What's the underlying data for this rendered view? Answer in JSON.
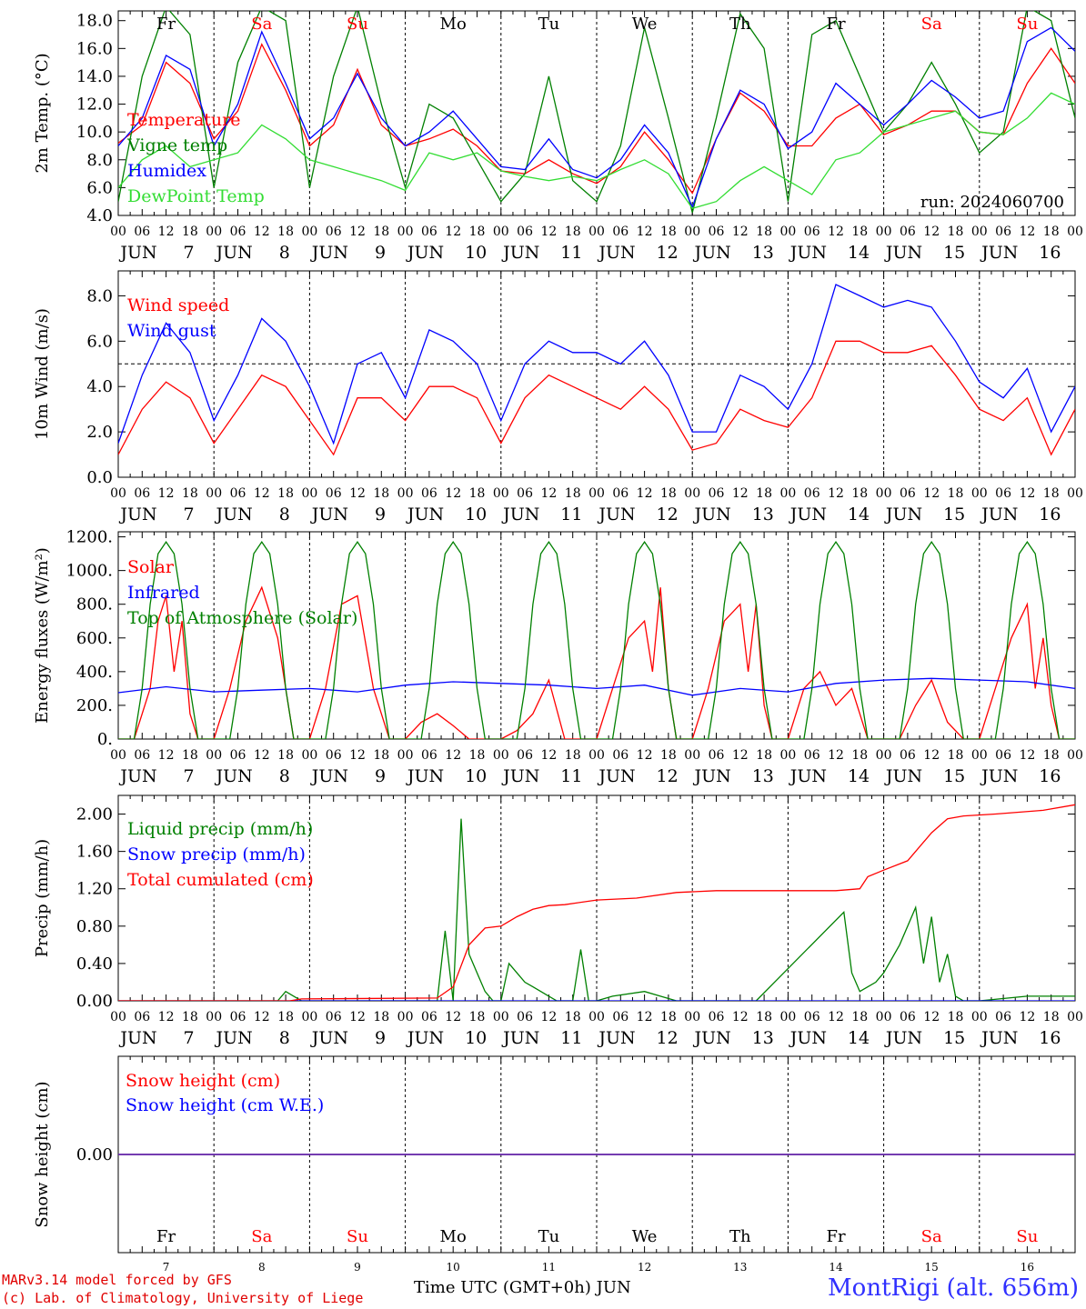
{
  "days": [
    {
      "day": "7",
      "abbr": "Fr",
      "weekend": false
    },
    {
      "day": "8",
      "abbr": "Sa",
      "weekend": true
    },
    {
      "day": "9",
      "abbr": "Su",
      "weekend": true
    },
    {
      "day": "10",
      "abbr": "Mo",
      "weekend": false
    },
    {
      "day": "11",
      "abbr": "Tu",
      "weekend": false
    },
    {
      "day": "12",
      "abbr": "We",
      "weekend": false
    },
    {
      "day": "13",
      "abbr": "Th",
      "weekend": false
    },
    {
      "day": "14",
      "abbr": "Fr",
      "weekend": false
    },
    {
      "day": "15",
      "abbr": "Sa",
      "weekend": true
    },
    {
      "day": "16",
      "abbr": "Su",
      "weekend": true
    }
  ],
  "month": "JUN",
  "hour_ticks": [
    "00",
    "06",
    "12",
    "18"
  ],
  "colors": {
    "red": "#ff0000",
    "green": "#008000",
    "blue": "#0000ff",
    "lightgreen": "#33dd33",
    "purple": "#7030a0",
    "weekend": "#ff0000"
  },
  "chart_data": [
    {
      "type": "line",
      "panel": "temperature",
      "ylabel": "2m Temp. (°C)",
      "ylim": [
        4,
        18.7
      ],
      "yticks": [
        4,
        6,
        8,
        10,
        12,
        14,
        16,
        18
      ],
      "ytick_labels": [
        "4.0",
        "6.0",
        "8.0",
        "10.0",
        "12.0",
        "14.0",
        "16.0",
        "18.0"
      ],
      "annotation": "run: 2024060700",
      "series": [
        {
          "name": "Temperature",
          "color": "red",
          "x": [
            0,
            6,
            12,
            18,
            24,
            30,
            36,
            42,
            48,
            54,
            60,
            66,
            72,
            78,
            84,
            90,
            96,
            102,
            108,
            114,
            120,
            126,
            132,
            138,
            144,
            150,
            156,
            162,
            168,
            174,
            180,
            186,
            192,
            198,
            204,
            210,
            216,
            222,
            228,
            234,
            240
          ],
          "y": [
            9.2,
            10.5,
            15.0,
            13.5,
            9.5,
            11.5,
            16.3,
            13.0,
            9.0,
            10.5,
            14.5,
            10.5,
            9.0,
            9.5,
            10.2,
            9.0,
            7.2,
            7.0,
            8.0,
            7.0,
            6.3,
            7.5,
            10.0,
            8.0,
            5.6,
            9.5,
            12.8,
            11.5,
            9.0,
            9.0,
            11.0,
            12.0,
            9.8,
            10.5,
            11.5,
            11.5,
            10.0,
            9.8,
            13.5,
            16.0,
            13.5
          ]
        },
        {
          "name": "Vigne temp",
          "color": "green",
          "x": [
            0,
            6,
            12,
            18,
            24,
            30,
            36,
            42,
            48,
            54,
            60,
            66,
            72,
            78,
            84,
            90,
            96,
            102,
            108,
            114,
            120,
            126,
            132,
            138,
            144,
            150,
            156,
            162,
            168,
            174,
            180,
            186,
            192,
            198,
            204,
            210,
            216,
            222,
            228,
            234,
            240
          ],
          "y": [
            5.0,
            14.0,
            19.0,
            17.0,
            6.0,
            15.0,
            19.0,
            18.0,
            6.0,
            14.0,
            19.0,
            12.0,
            6.0,
            12.0,
            11.0,
            8.0,
            5.0,
            7.0,
            14.0,
            6.5,
            5.0,
            9.0,
            17.5,
            11.0,
            4.2,
            11.0,
            18.5,
            16.0,
            5.0,
            17.0,
            18.0,
            14.0,
            10.0,
            12.0,
            15.0,
            12.0,
            8.5,
            10.0,
            19.0,
            18.0,
            11.0
          ]
        },
        {
          "name": "Humidex",
          "color": "blue",
          "x": [
            0,
            6,
            12,
            18,
            24,
            30,
            36,
            42,
            48,
            54,
            60,
            66,
            72,
            78,
            84,
            90,
            96,
            102,
            108,
            114,
            120,
            126,
            132,
            138,
            144,
            150,
            156,
            162,
            168,
            174,
            180,
            186,
            192,
            198,
            204,
            210,
            216,
            222,
            228,
            234,
            240
          ],
          "y": [
            9.0,
            11.0,
            15.5,
            14.5,
            9.0,
            12.0,
            17.2,
            13.5,
            9.5,
            11.0,
            14.2,
            11.0,
            9.0,
            10.0,
            11.5,
            9.5,
            7.5,
            7.3,
            9.5,
            7.3,
            6.7,
            8.0,
            10.5,
            8.5,
            4.6,
            9.5,
            13.0,
            12.0,
            8.8,
            10.0,
            13.5,
            12.0,
            10.5,
            12.0,
            13.7,
            12.5,
            11.0,
            11.5,
            16.5,
            17.5,
            15.8
          ]
        },
        {
          "name": "DewPoint Temp",
          "color": "lightgreen",
          "x": [
            0,
            6,
            12,
            18,
            24,
            30,
            36,
            42,
            48,
            54,
            60,
            66,
            72,
            78,
            84,
            90,
            96,
            102,
            108,
            114,
            120,
            126,
            132,
            138,
            144,
            150,
            156,
            162,
            168,
            174,
            180,
            186,
            192,
            198,
            204,
            210,
            216,
            222,
            228,
            234,
            240
          ],
          "y": [
            6.0,
            8.0,
            9.0,
            7.5,
            8.0,
            8.5,
            10.5,
            9.5,
            8.0,
            7.5,
            7.0,
            6.5,
            5.8,
            8.5,
            8.0,
            8.5,
            7.2,
            6.8,
            6.5,
            6.8,
            6.5,
            7.3,
            8.0,
            7.0,
            4.5,
            5.0,
            6.5,
            7.5,
            6.5,
            5.5,
            8.0,
            8.5,
            10.0,
            10.5,
            11.0,
            11.5,
            10.0,
            9.8,
            11.0,
            12.8,
            12.0
          ]
        }
      ]
    },
    {
      "type": "line",
      "panel": "wind",
      "ylabel": "10m Wind (m/s)",
      "ylim": [
        0,
        9.1
      ],
      "yticks": [
        0,
        2,
        4,
        6,
        8
      ],
      "ytick_labels": [
        "0.0",
        "2.0",
        "4.0",
        "6.0",
        "8.0"
      ],
      "ref_line": 5,
      "series": [
        {
          "name": "Wind speed",
          "color": "red",
          "x": [
            0,
            6,
            12,
            18,
            24,
            30,
            36,
            42,
            48,
            54,
            60,
            66,
            72,
            78,
            84,
            90,
            96,
            102,
            108,
            114,
            120,
            126,
            132,
            138,
            144,
            150,
            156,
            162,
            168,
            174,
            180,
            186,
            192,
            198,
            204,
            210,
            216,
            222,
            228,
            234,
            240
          ],
          "y": [
            1.0,
            3.0,
            4.2,
            3.5,
            1.5,
            3.0,
            4.5,
            4.0,
            2.5,
            1.0,
            3.5,
            3.5,
            2.5,
            4.0,
            4.0,
            3.5,
            1.5,
            3.5,
            4.5,
            4.0,
            3.5,
            3.0,
            4.0,
            3.0,
            1.2,
            1.5,
            3.0,
            2.5,
            2.2,
            3.5,
            6.0,
            6.0,
            5.5,
            5.5,
            5.8,
            4.5,
            3.0,
            2.5,
            3.5,
            1.0,
            3.0
          ]
        },
        {
          "name": "Wind gust",
          "color": "blue",
          "x": [
            0,
            6,
            12,
            18,
            24,
            30,
            36,
            42,
            48,
            54,
            60,
            66,
            72,
            78,
            84,
            90,
            96,
            102,
            108,
            114,
            120,
            126,
            132,
            138,
            144,
            150,
            156,
            162,
            168,
            174,
            180,
            186,
            192,
            198,
            204,
            210,
            216,
            222,
            228,
            234,
            240
          ],
          "y": [
            1.5,
            4.5,
            6.8,
            5.5,
            2.5,
            4.5,
            7.0,
            6.0,
            4.0,
            1.5,
            5.0,
            5.5,
            3.5,
            6.5,
            6.0,
            5.0,
            2.5,
            5.0,
            6.0,
            5.5,
            5.5,
            5.0,
            6.0,
            4.5,
            2.0,
            2.0,
            4.5,
            4.0,
            3.0,
            5.0,
            8.5,
            8.0,
            7.5,
            7.8,
            7.5,
            6.0,
            4.2,
            3.5,
            4.8,
            2.0,
            4.0
          ]
        }
      ]
    },
    {
      "type": "line",
      "panel": "energy",
      "ylabel": "Energy fluxes (W/m²)",
      "ylim": [
        0,
        1230
      ],
      "yticks": [
        0,
        200,
        400,
        600,
        800,
        1000,
        1200
      ],
      "ytick_labels": [
        "0.",
        "200.",
        "400.",
        "600.",
        "800.",
        "1000.",
        "1200."
      ],
      "series": [
        {
          "name": "Solar",
          "color": "red",
          "x": [
            0,
            4,
            8,
            10,
            12,
            14,
            16,
            18,
            20,
            24,
            28,
            32,
            36,
            40,
            44,
            48,
            52,
            56,
            60,
            64,
            68,
            72,
            76,
            80,
            84,
            88,
            92,
            96,
            100,
            104,
            108,
            112,
            116,
            120,
            124,
            128,
            132,
            134,
            136,
            138,
            140,
            144,
            148,
            152,
            156,
            158,
            160,
            162,
            164,
            168,
            172,
            176,
            180,
            184,
            188,
            192,
            196,
            200,
            204,
            208,
            212,
            216,
            220,
            224,
            228,
            230,
            232,
            234,
            236,
            240
          ],
          "y": [
            0,
            0,
            300,
            700,
            850,
            400,
            700,
            150,
            0,
            0,
            300,
            700,
            900,
            600,
            0,
            0,
            300,
            800,
            850,
            300,
            0,
            0,
            100,
            150,
            80,
            0,
            0,
            0,
            50,
            150,
            350,
            0,
            0,
            0,
            300,
            600,
            700,
            400,
            900,
            300,
            0,
            0,
            300,
            700,
            800,
            400,
            800,
            200,
            0,
            0,
            300,
            400,
            200,
            300,
            0,
            0,
            0,
            200,
            350,
            100,
            0,
            0,
            300,
            600,
            800,
            300,
            600,
            200,
            0,
            0
          ]
        },
        {
          "name": "Infrared",
          "color": "blue",
          "x": [
            0,
            12,
            24,
            36,
            48,
            60,
            72,
            84,
            96,
            108,
            120,
            132,
            144,
            156,
            168,
            180,
            192,
            204,
            216,
            228,
            240
          ],
          "y": [
            275,
            310,
            280,
            290,
            300,
            280,
            320,
            340,
            330,
            320,
            300,
            320,
            260,
            300,
            280,
            330,
            350,
            360,
            350,
            340,
            300
          ]
        },
        {
          "name": "Top of Atmosphere (Solar)",
          "color": "green",
          "x": [
            0,
            2,
            4,
            6,
            8,
            10,
            12,
            14,
            16,
            18,
            20,
            22,
            24
          ],
          "y": [
            0,
            0,
            0,
            300,
            800,
            1100,
            1170,
            1100,
            800,
            300,
            0,
            0,
            0
          ],
          "repeat_daily": true
        }
      ]
    },
    {
      "type": "line",
      "panel": "precip",
      "ylabel": "Precip (mm/h)",
      "ylim": [
        0,
        2.2
      ],
      "yticks": [
        0,
        0.4,
        0.8,
        1.2,
        1.6,
        2.0
      ],
      "ytick_labels": [
        "0.00",
        "0.40",
        "0.80",
        "1.20",
        "1.60",
        "2.00"
      ],
      "series": [
        {
          "name": "Liquid precip (mm/h)",
          "color": "green",
          "x": [
            0,
            40,
            42,
            44,
            46,
            80,
            82,
            84,
            86,
            88,
            90,
            92,
            94,
            96,
            98,
            100,
            102,
            104,
            106,
            108,
            110,
            112,
            114,
            116,
            118,
            120,
            124,
            132,
            136,
            140,
            148,
            160,
            182,
            184,
            186,
            188,
            190,
            192,
            196,
            200,
            202,
            204,
            206,
            208,
            210,
            212,
            214,
            216,
            228,
            232,
            236,
            240
          ],
          "y": [
            0,
            0,
            0.1,
            0.05,
            0,
            0,
            0.75,
            0,
            1.95,
            0.5,
            0.3,
            0.1,
            0,
            0,
            0.4,
            0.3,
            0.2,
            0.15,
            0.1,
            0.05,
            0,
            0,
            0,
            0.55,
            0,
            0,
            0.05,
            0.1,
            0.05,
            0,
            0,
            0,
            0.95,
            0.3,
            0.1,
            0.15,
            0.2,
            0.3,
            0.6,
            1.0,
            0.4,
            0.9,
            0.2,
            0.5,
            0.05,
            0,
            0,
            0,
            0.05,
            0.05,
            0.05,
            0.05
          ]
        },
        {
          "name": "Snow precip (mm/h)",
          "color": "blue",
          "x": [
            0,
            240
          ],
          "y": [
            0,
            0
          ]
        },
        {
          "name": "Total cumulated (cm)",
          "color": "red",
          "x": [
            0,
            43,
            46,
            80,
            84,
            88,
            92,
            96,
            100,
            104,
            108,
            112,
            120,
            130,
            140,
            150,
            160,
            170,
            180,
            186,
            188,
            192,
            198,
            204,
            208,
            212,
            220,
            232,
            240
          ],
          "y": [
            0,
            0,
            0.02,
            0.03,
            0.15,
            0.6,
            0.78,
            0.8,
            0.9,
            0.98,
            1.02,
            1.03,
            1.08,
            1.1,
            1.16,
            1.18,
            1.18,
            1.18,
            1.18,
            1.2,
            1.33,
            1.4,
            1.5,
            1.8,
            1.95,
            1.98,
            2.0,
            2.04,
            2.1
          ]
        }
      ]
    },
    {
      "type": "line",
      "panel": "snow",
      "ylabel": "Snow height (cm)",
      "ylim": [
        -1,
        1
      ],
      "yticks": [
        0
      ],
      "ytick_labels": [
        "0.00"
      ],
      "series": [
        {
          "name": "Snow height (cm)",
          "color": "red",
          "x": [
            0,
            240
          ],
          "y": [
            0,
            0
          ]
        },
        {
          "name": "Snow height (cm W.E.)",
          "color": "blue",
          "x": [
            0,
            240
          ],
          "y": [
            0,
            0
          ]
        }
      ]
    }
  ],
  "xaxis_label": "Time UTC (GMT+0h)",
  "footer": {
    "model": "MARv3.14 model forced by GFS",
    "credit": "(c) Lab. of Climatology, University of Liege",
    "station": "MontRigi (alt. 656m)"
  }
}
